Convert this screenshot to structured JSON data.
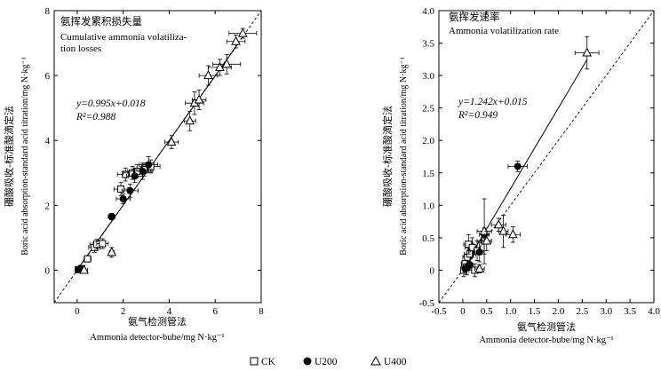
{
  "chart_data": [
    {
      "type": "scatter",
      "title_cn": "氨挥发累积损失量",
      "title_en": [
        "Cumulative ammonia volatiliza-",
        "tion losses"
      ],
      "xlabel_cn": "氨气检测管法",
      "xlabel_en": "Ammonia detector-bube/mg N·kg⁻¹",
      "ylabel_cn": "硼酸吸收-标准酸滴定法",
      "ylabel_en": "Boric acid absorption-standard acid titration/mg N·kg⁻¹",
      "xlim": [
        -1,
        8
      ],
      "ylim": [
        -1,
        8
      ],
      "xticks": [
        "0",
        "2",
        "4",
        "6",
        "8"
      ],
      "yticks": [
        "0",
        "2",
        "4",
        "6",
        "8"
      ],
      "equation": "y=0.995x+0.018",
      "r2": "R²=0.988",
      "fit": {
        "slope": 0.995,
        "intercept": 0.018,
        "x_range": [
          0.1,
          7.0
        ]
      },
      "reference_line": {
        "slope": 1,
        "intercept": 0
      },
      "series": [
        {
          "name": "CK",
          "marker": "square",
          "points": [
            {
              "x": 0.05,
              "y": 0.02,
              "ex": 0.08,
              "ey": 0.05
            },
            {
              "x": 0.2,
              "y": 0.05,
              "ex": 0.1,
              "ey": 0.06
            },
            {
              "x": 0.45,
              "y": 0.35,
              "ex": 0.15,
              "ey": 0.1
            },
            {
              "x": 0.75,
              "y": 0.7,
              "ex": 0.25,
              "ey": 0.15
            },
            {
              "x": 0.85,
              "y": 0.8,
              "ex": 0.3,
              "ey": 0.15
            },
            {
              "x": 1.1,
              "y": 0.82,
              "ex": 0.25,
              "ey": 0.15
            },
            {
              "x": 1.9,
              "y": 2.5,
              "ex": 0.3,
              "ey": 0.2
            },
            {
              "x": 2.1,
              "y": 2.95,
              "ex": 0.35,
              "ey": 0.2
            },
            {
              "x": 2.4,
              "y": 3.0,
              "ex": 0.4,
              "ey": 0.2
            },
            {
              "x": 2.6,
              "y": 3.05,
              "ex": 0.4,
              "ey": 0.2
            },
            {
              "x": 2.9,
              "y": 3.1,
              "ex": 0.4,
              "ey": 0.2
            },
            {
              "x": 3.2,
              "y": 3.2,
              "ex": 0.4,
              "ey": 0.2
            }
          ]
        },
        {
          "name": "U200",
          "marker": "circle",
          "points": [
            {
              "x": 0.05,
              "y": 0.02,
              "ex": 0.05,
              "ey": 0.03
            },
            {
              "x": 0.15,
              "y": 0.05,
              "ex": 0.08,
              "ey": 0.05
            },
            {
              "x": 1.5,
              "y": 1.65,
              "ex": 0.15,
              "ey": 0.1
            },
            {
              "x": 2.0,
              "y": 2.2,
              "ex": 0.3,
              "ey": 0.15
            },
            {
              "x": 2.3,
              "y": 2.45,
              "ex": 0.35,
              "ey": 0.2
            },
            {
              "x": 2.5,
              "y": 2.9,
              "ex": 0.35,
              "ey": 0.2
            },
            {
              "x": 2.85,
              "y": 3.05,
              "ex": 0.4,
              "ey": 0.25
            },
            {
              "x": 3.1,
              "y": 3.25,
              "ex": 0.4,
              "ey": 0.25
            }
          ]
        },
        {
          "name": "U400",
          "marker": "triangle",
          "points": [
            {
              "x": 0.3,
              "y": 0.0,
              "ex": 0.15,
              "ey": 0.06
            },
            {
              "x": 1.5,
              "y": 0.55,
              "ex": 0.1,
              "ey": 0.15
            },
            {
              "x": 4.1,
              "y": 3.95,
              "ex": 0.3,
              "ey": 0.2
            },
            {
              "x": 4.9,
              "y": 4.6,
              "ex": 0.25,
              "ey": 0.3
            },
            {
              "x": 5.1,
              "y": 5.15,
              "ex": 0.4,
              "ey": 0.35
            },
            {
              "x": 5.3,
              "y": 5.25,
              "ex": 0.3,
              "ey": 0.3
            },
            {
              "x": 5.7,
              "y": 6.0,
              "ex": 0.4,
              "ey": 0.3
            },
            {
              "x": 6.2,
              "y": 6.25,
              "ex": 0.5,
              "ey": 0.25
            },
            {
              "x": 6.5,
              "y": 6.35,
              "ex": 0.6,
              "ey": 0.3
            },
            {
              "x": 6.9,
              "y": 7.05,
              "ex": 0.4,
              "ey": 0.2
            },
            {
              "x": 7.2,
              "y": 7.3,
              "ex": 0.6,
              "ey": 0.15
            }
          ]
        }
      ]
    },
    {
      "type": "scatter",
      "title_cn": "氨挥发速率",
      "title_en": [
        "Ammonia volatilization rate"
      ],
      "xlabel_cn": "氨气检测管法",
      "xlabel_en": "Ammonia detector-bube/mg N·kg⁻¹",
      "ylabel_cn": "硼酸吸收-标准酸滴定法",
      "ylabel_en": "Boric acid absorption-standard acid titration/mg N·kg⁻¹",
      "xlim": [
        -0.5,
        4.0
      ],
      "ylim": [
        -0.5,
        4.0
      ],
      "xticks": [
        "-0.5",
        "0",
        "0.5",
        "1.0",
        "1.5",
        "2.0",
        "2.5",
        "3.0",
        "3.5",
        "4.0"
      ],
      "yticks": [
        "-0.5",
        "0",
        "0.5",
        "1.0",
        "1.5",
        "2.0",
        "2.5",
        "3.0",
        "3.5",
        "4.0"
      ],
      "equation": "y=1.242x+0.015",
      "r2": "R²=0.949",
      "fit": {
        "slope": 1.242,
        "intercept": 0.015,
        "x_range": [
          0.0,
          2.6
        ]
      },
      "reference_line": {
        "slope": 1,
        "intercept": 0
      },
      "series": [
        {
          "name": "CK",
          "marker": "square",
          "points": [
            {
              "x": 0.02,
              "y": 0.0,
              "ex": 0.06,
              "ey": 0.1
            },
            {
              "x": 0.05,
              "y": 0.1,
              "ex": 0.08,
              "ey": 0.12
            },
            {
              "x": 0.08,
              "y": 0.05,
              "ex": 0.1,
              "ey": 0.12
            },
            {
              "x": 0.1,
              "y": 0.2,
              "ex": 0.1,
              "ey": 0.15
            },
            {
              "x": 0.15,
              "y": 0.25,
              "ex": 0.12,
              "ey": 0.15
            },
            {
              "x": 0.12,
              "y": 0.4,
              "ex": 0.1,
              "ey": 0.15
            },
            {
              "x": 0.2,
              "y": 0.35,
              "ex": 0.15,
              "ey": 0.15
            },
            {
              "x": 0.3,
              "y": 0.3,
              "ex": 0.15,
              "ey": 0.15
            },
            {
              "x": 0.25,
              "y": 0.0,
              "ex": 0.12,
              "ey": 0.1
            },
            {
              "x": 0.45,
              "y": 0.45,
              "ex": 0.15,
              "ey": 0.2
            }
          ]
        },
        {
          "name": "U200",
          "marker": "circle",
          "points": [
            {
              "x": 0.05,
              "y": 0.02,
              "ex": 0.05,
              "ey": 0.05
            },
            {
              "x": 0.1,
              "y": 0.05,
              "ex": 0.05,
              "ey": 0.05
            },
            {
              "x": 0.15,
              "y": 0.08,
              "ex": 0.06,
              "ey": 0.05
            },
            {
              "x": 0.35,
              "y": 0.28,
              "ex": 0.1,
              "ey": 0.15
            },
            {
              "x": 0.45,
              "y": 0.55,
              "ex": 0.1,
              "ey": 0.1
            },
            {
              "x": 1.15,
              "y": 1.6,
              "ex": 0.2,
              "ey": 0.08
            }
          ]
        },
        {
          "name": "U400",
          "marker": "triangle",
          "points": [
            {
              "x": 0.35,
              "y": 0.02,
              "ex": 0.1,
              "ey": 0.06
            },
            {
              "x": 0.45,
              "y": 0.6,
              "ex": 0.15,
              "ey": 0.5
            },
            {
              "x": 0.5,
              "y": 0.45,
              "ex": 0.1,
              "ey": 0.15
            },
            {
              "x": 0.75,
              "y": 0.7,
              "ex": 0.15,
              "ey": 0.1
            },
            {
              "x": 0.85,
              "y": 0.6,
              "ex": 0.1,
              "ey": 0.25
            },
            {
              "x": 1.05,
              "y": 0.55,
              "ex": 0.15,
              "ey": 0.12
            },
            {
              "x": 2.6,
              "y": 3.35,
              "ex": 0.25,
              "ey": 0.25
            }
          ]
        }
      ]
    }
  ],
  "legend": [
    {
      "marker": "square",
      "label": "CK"
    },
    {
      "marker": "circle",
      "label": "U200"
    },
    {
      "marker": "triangle",
      "label": "U400"
    }
  ]
}
